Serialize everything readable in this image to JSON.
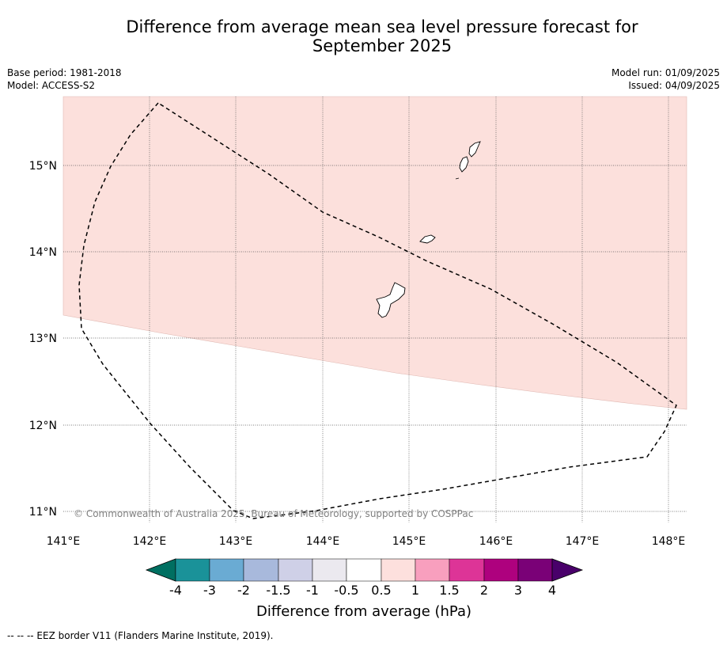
{
  "title_line1": "Difference from average mean sea level pressure forecast for",
  "title_line2": "September 2025",
  "meta": {
    "base_period": "Base period: 1981-2018",
    "model": "Model: ACCESS-S2",
    "model_run": "Model run: 01/09/2025",
    "issued": "Issued: 04/09/2025"
  },
  "map": {
    "lat_labels": [
      "15°N",
      "14°N",
      "13°N",
      "12°N",
      "11°N"
    ],
    "lon_labels": [
      "141°E",
      "142°E",
      "143°E",
      "144°E",
      "145°E",
      "146°E",
      "147°E",
      "148°E"
    ],
    "copyright": "© Commonwealth of Australia 2025, Bureau of Meteorology, supported by COSPPac",
    "anomaly_fill_color": "#fce0dc",
    "anomaly_category": "0.5 to 1"
  },
  "colorbar": {
    "label": "Difference from average (hPa)",
    "ticks": [
      "-4",
      "-3",
      "-2",
      "-1.5",
      "-1",
      "-0.5",
      "0.5",
      "1",
      "1.5",
      "2",
      "3",
      "4"
    ],
    "colors": [
      "#006f61",
      "#1a9299",
      "#6aabd3",
      "#a8b9dc",
      "#cfd0e7",
      "#ebe9ef",
      "#ffffff",
      "#fde0dd",
      "#f89fbe",
      "#dd3497",
      "#ae017e",
      "#7a0177",
      "#49006a"
    ]
  },
  "footnote": "--  --  -- EEZ border V11 (Flanders Marine Institute, 2019)."
}
